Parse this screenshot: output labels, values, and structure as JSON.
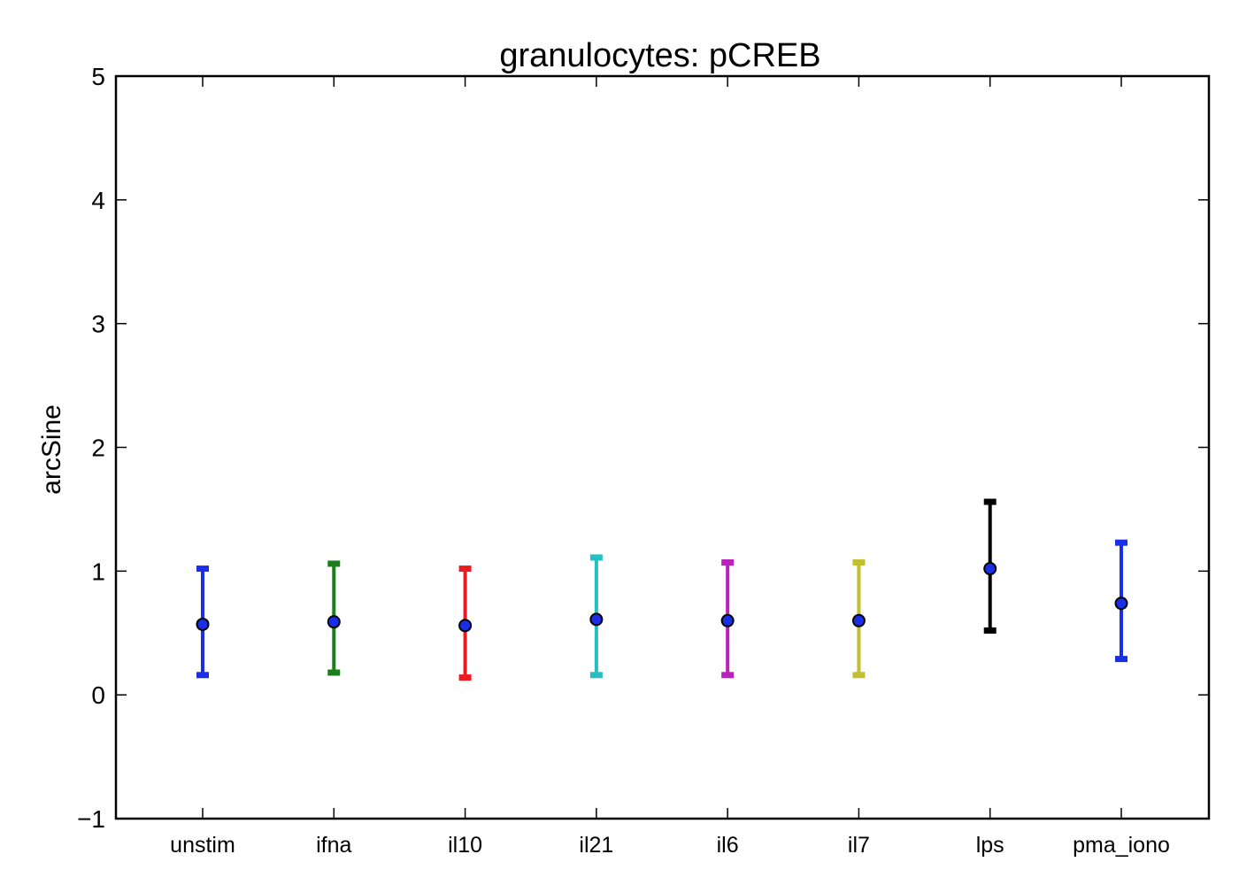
{
  "chart_data": {
    "type": "errorbar",
    "title": "granulocytes: pCREB",
    "xlabel": "",
    "ylabel": "arcSine",
    "ylim": [
      -1,
      5
    ],
    "yticks": [
      -1,
      0,
      1,
      2,
      3,
      4,
      5
    ],
    "ytick_labels": [
      "−1",
      "0",
      "1",
      "2",
      "3",
      "4",
      "5"
    ],
    "grid": false,
    "categories": [
      "unstim",
      "ifna",
      "il10",
      "il21",
      "il6",
      "il7",
      "lps",
      "pma_iono"
    ],
    "values": [
      0.57,
      0.59,
      0.56,
      0.61,
      0.6,
      0.6,
      1.02,
      0.74
    ],
    "lower": [
      0.16,
      0.18,
      0.14,
      0.16,
      0.16,
      0.16,
      0.52,
      0.29
    ],
    "upper": [
      1.02,
      1.06,
      1.02,
      1.11,
      1.07,
      1.07,
      1.56,
      1.23
    ],
    "colors": [
      "#1a2ee8",
      "#1a7f1a",
      "#ee1a22",
      "#22c0c0",
      "#bb22bb",
      "#c0c030",
      "#000000",
      "#1a2ee8"
    ],
    "marker_color": "#1a2ee8"
  }
}
